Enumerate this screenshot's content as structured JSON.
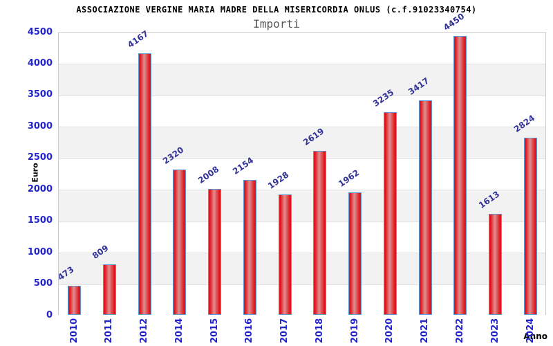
{
  "chart_data": {
    "type": "bar",
    "title": "ASSOCIAZIONE VERGINE MARIA MADRE DELLA MISERICORDIA ONLUS (c.f.91023340754)",
    "subtitle": "Importi",
    "xlabel": "Anno",
    "ylabel": "Euro",
    "categories": [
      "2010",
      "2011",
      "2012",
      "2014",
      "2015",
      "2016",
      "2017",
      "2018",
      "2019",
      "2020",
      "2021",
      "2022",
      "2023",
      "2024"
    ],
    "values": [
      473,
      809,
      4167,
      2320,
      2008,
      2154,
      1928,
      2619,
      1962,
      3235,
      3417,
      4450,
      1613,
      2824
    ],
    "ylim": [
      0,
      4500
    ],
    "ytick_step": 500,
    "grid": true,
    "legend": "none",
    "value_labels_rotated": true,
    "xtick_rotation_deg": 90,
    "alternating_bands": true
  },
  "style": {
    "colors": {
      "bar_fill": "#e0161d",
      "bar_fill_light": "#de9090",
      "bar_border": "#5b9bd5",
      "tick_label": "#2323cd",
      "value_label": "#333399",
      "band": "#f2f2f2",
      "gridline": "#e2e2e2",
      "title": "#000000",
      "subtitle": "#555555"
    }
  }
}
